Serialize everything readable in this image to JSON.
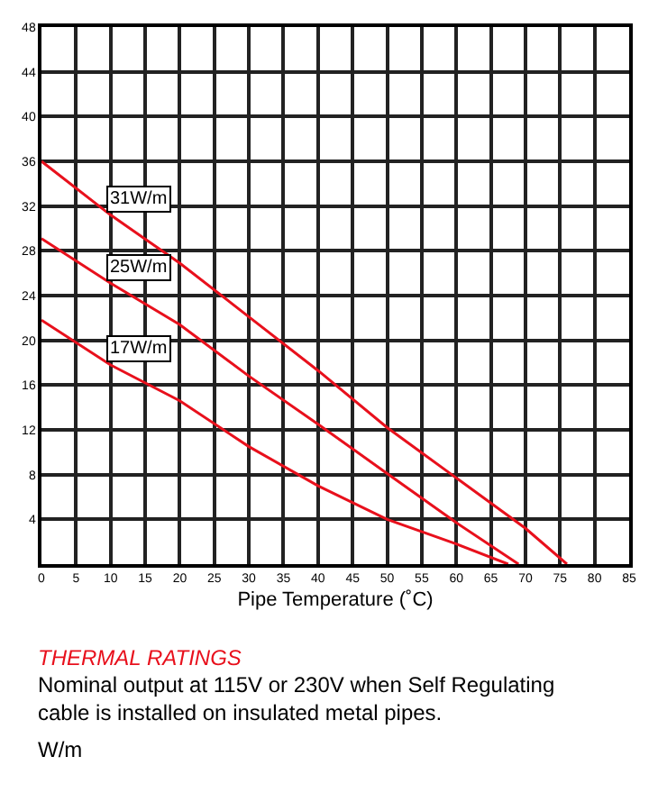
{
  "chart_data": {
    "type": "line",
    "title": "THERMAL RATINGS",
    "subtitle": "Nominal output at 115V or 230V when Self Regulating cable is installed on insulated metal pipes.",
    "xlabel": "Pipe Temperature (˚C)",
    "annotations": [
      "W/m"
    ],
    "series": [
      {
        "name": "31W/m",
        "color": "#e8101c",
        "x": [
          0,
          10,
          20,
          30,
          40,
          50,
          60,
          70,
          76
        ],
        "values": [
          36,
          31.2,
          26.9,
          22.1,
          17.3,
          12.2,
          7.7,
          3.2,
          0
        ]
      },
      {
        "name": "25W/m",
        "color": "#e8101c",
        "x": [
          0,
          10,
          20,
          30,
          40,
          50,
          60,
          69
        ],
        "values": [
          29.1,
          25.1,
          21.4,
          16.8,
          12.5,
          8.1,
          3.7,
          0
        ]
      },
      {
        "name": "17W/m",
        "color": "#e8101c",
        "x": [
          0,
          10,
          20,
          30,
          40,
          50,
          60,
          67.5
        ],
        "values": [
          21.8,
          17.8,
          14.6,
          10.5,
          7.0,
          4.0,
          1.8,
          0
        ]
      }
    ],
    "xlim": [
      0,
      85
    ],
    "ylim": [
      0,
      48
    ],
    "xticks": [
      0,
      5,
      10,
      15,
      20,
      25,
      30,
      35,
      40,
      45,
      50,
      55,
      60,
      65,
      70,
      75,
      80,
      85
    ],
    "yticks": [
      4,
      8,
      12,
      16,
      20,
      24,
      28,
      32,
      36,
      40,
      44,
      48
    ],
    "grid": true,
    "legend": false,
    "marker": "none",
    "line_style": "solid"
  }
}
